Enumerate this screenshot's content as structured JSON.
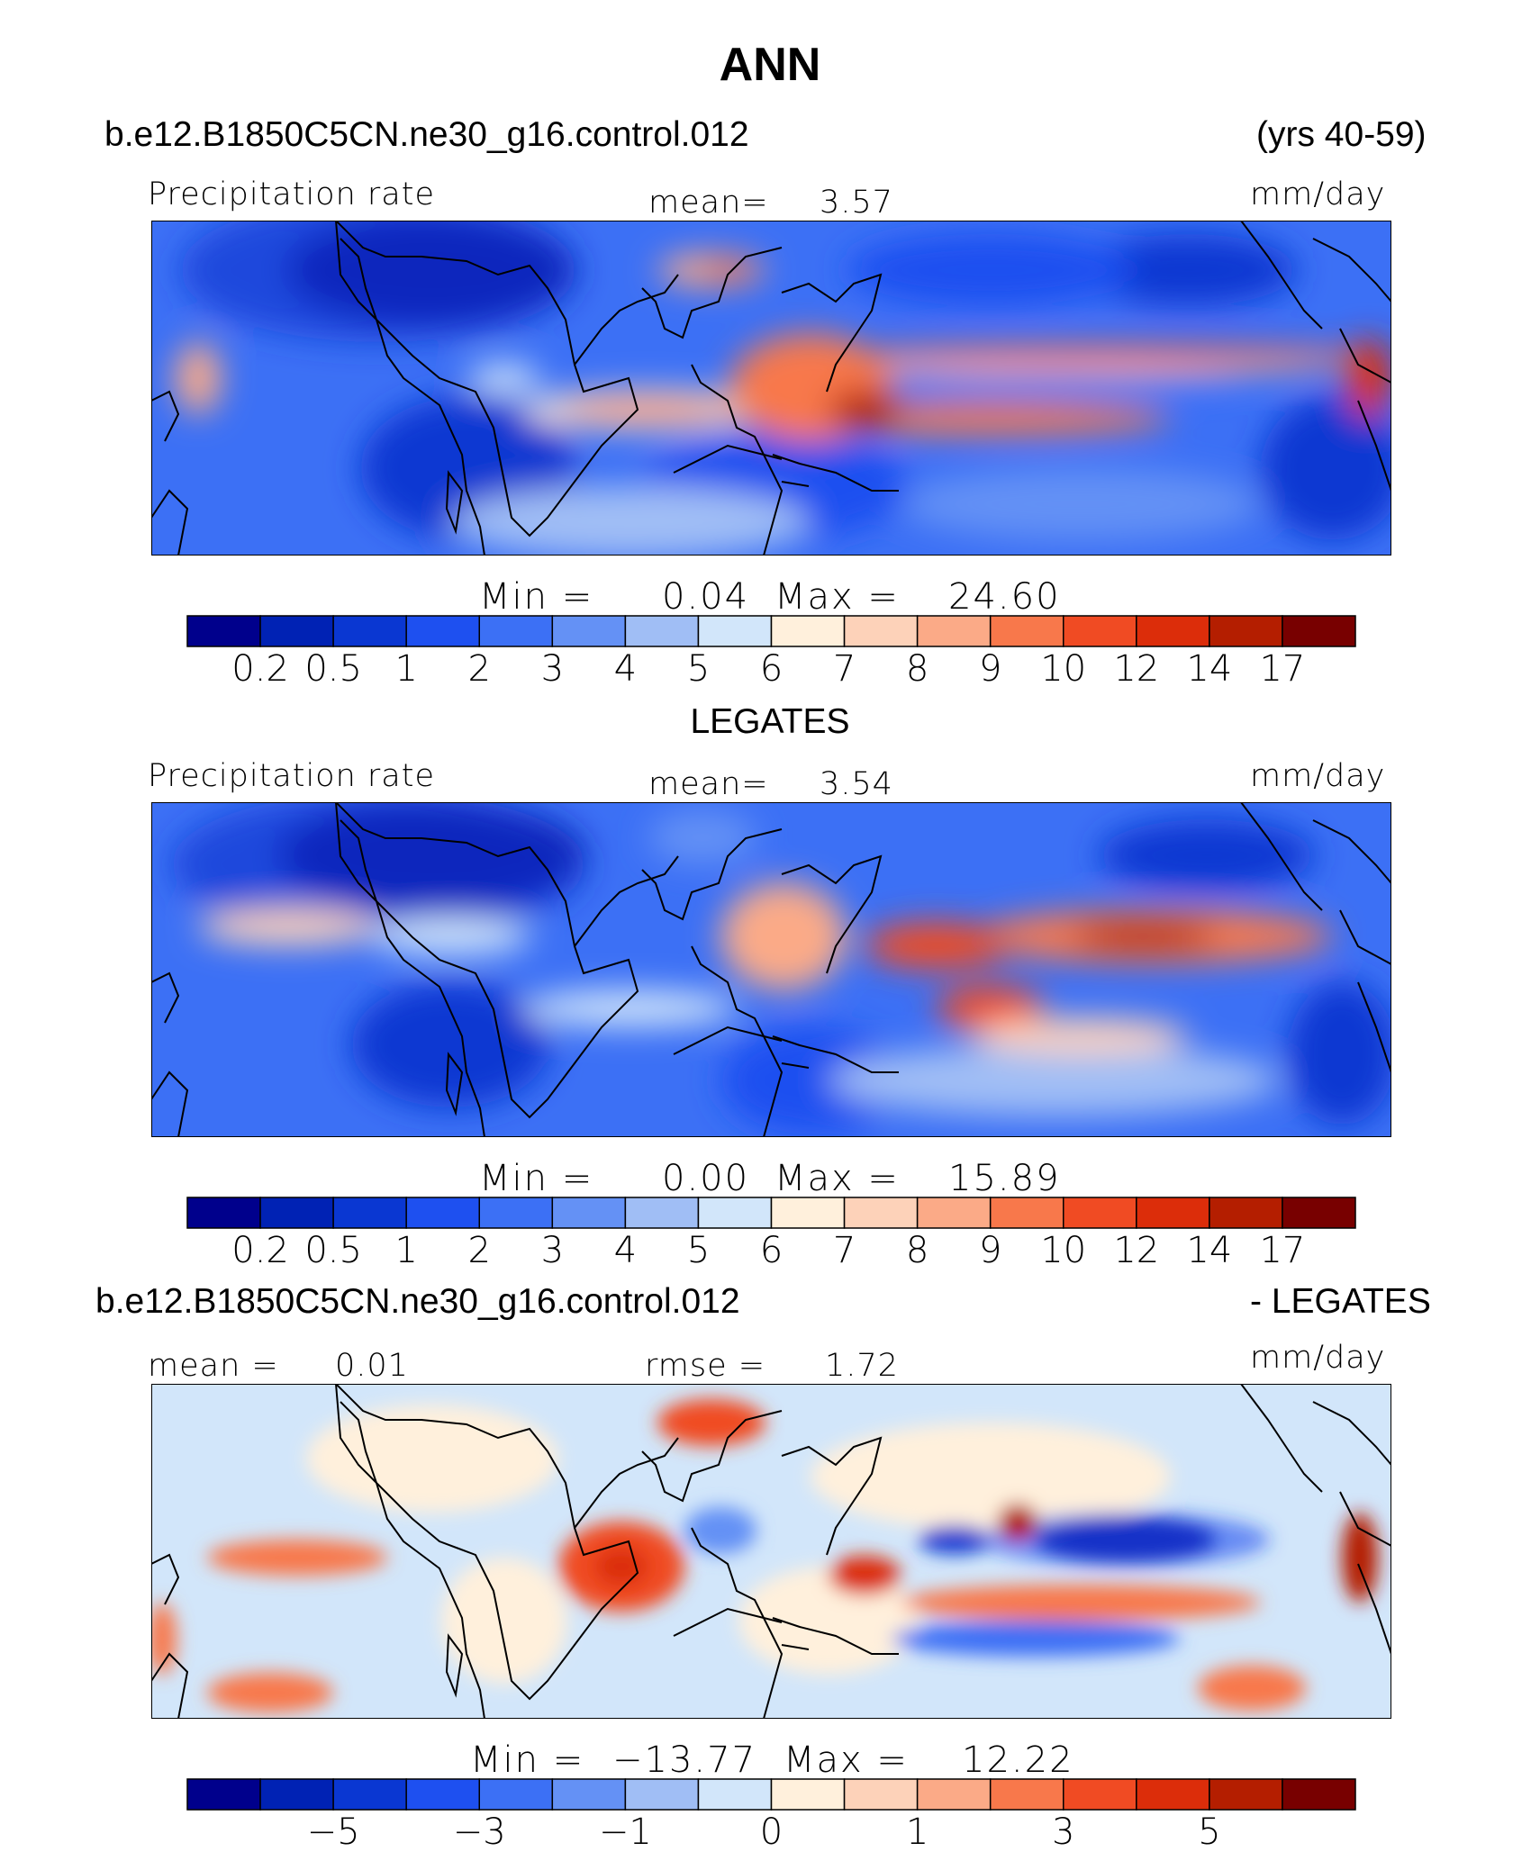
{
  "title": "ANN",
  "case_name": "b.e12.B1850C5CN.ne30_g16.control.012",
  "years": "(yrs 40-59)",
  "diff_case_name": "b.e12.B1850C5CN.ne30_g16.control.012",
  "diff_suffix": "- LEGATES",
  "panels": [
    {
      "id": "model",
      "left_label": "Precipitation rate",
      "center_label": "mean=",
      "center_value": "3.57",
      "units": "mm/day",
      "min_label": "Min  =",
      "min_value": "0.04",
      "max_label": "Max  =",
      "max_value": "24.60",
      "dataset_label": ""
    },
    {
      "id": "obs",
      "left_label": "Precipitation rate",
      "center_label": "mean=",
      "center_value": "3.54",
      "units": "mm/day",
      "min_label": "Min  =",
      "min_value": "0.00",
      "max_label": "Max  =",
      "max_value": "15.89",
      "dataset_label": "LEGATES"
    },
    {
      "id": "diff",
      "left_label": "mean =",
      "left_value": "0.01",
      "center_label": "rmse  =",
      "center_value": "1.72",
      "units": "mm/day",
      "min_label": "Min  =",
      "min_value": "−13.77",
      "max_label": "Max  =",
      "max_value": "12.22"
    }
  ],
  "colorbar": {
    "colors": [
      "#00008c",
      "#0022b4",
      "#0a37d2",
      "#1e50f0",
      "#3c70f5",
      "#6491f5",
      "#a0bef5",
      "#d2e6fa",
      "#fff0dc",
      "#fdd2b9",
      "#fbaa87",
      "#f8784b",
      "#f04b23",
      "#dc2d0a",
      "#b41e00",
      "#780000"
    ],
    "precip_ticks": [
      "0.2",
      "0.5",
      "1",
      "2",
      "3",
      "4",
      "5",
      "6",
      "7",
      "8",
      "9",
      "10",
      "12",
      "14",
      "17"
    ],
    "diff_ticks": [
      "−5",
      "−3",
      "−1",
      "0",
      "1",
      "3",
      "5"
    ]
  }
}
